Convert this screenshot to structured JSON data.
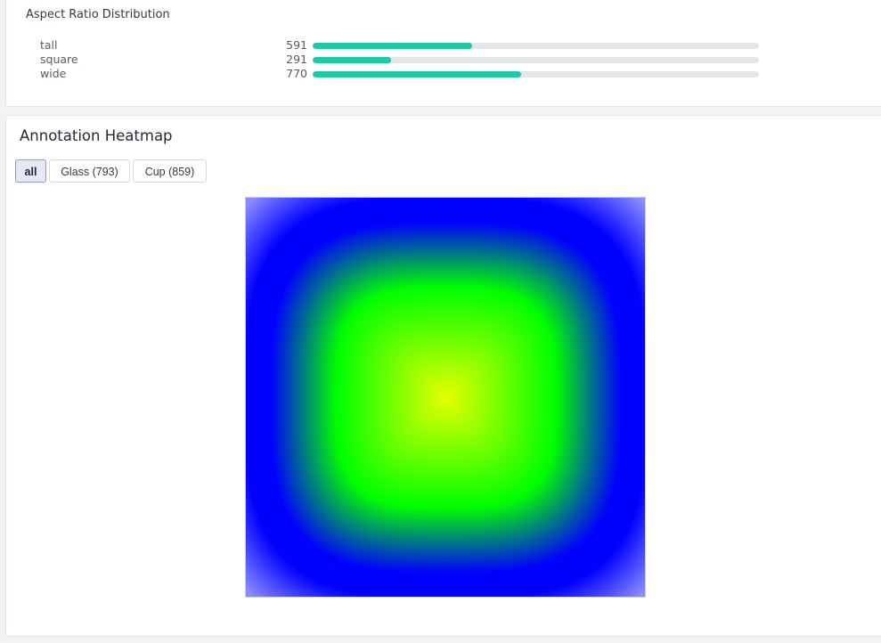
{
  "aspect_ratio": {
    "title": "Aspect Ratio Distribution",
    "max_count": 1650,
    "bar_color": "#1ec9a6",
    "rows": [
      {
        "label": "tall",
        "count": "591",
        "fraction": 0.358
      },
      {
        "label": "square",
        "count": "291",
        "fraction": 0.176
      },
      {
        "label": "wide",
        "count": "770",
        "fraction": 0.467
      }
    ]
  },
  "heatmap": {
    "title": "Annotation Heatmap",
    "filters": [
      {
        "label": "all",
        "active": true
      },
      {
        "label": "Glass (793)",
        "active": false
      },
      {
        "label": "Cup (859)",
        "active": false
      }
    ],
    "colormap": [
      "#0000ff",
      "#00ff00",
      "#e5ff00"
    ],
    "corner_fade_color": "#8a8cff"
  }
}
